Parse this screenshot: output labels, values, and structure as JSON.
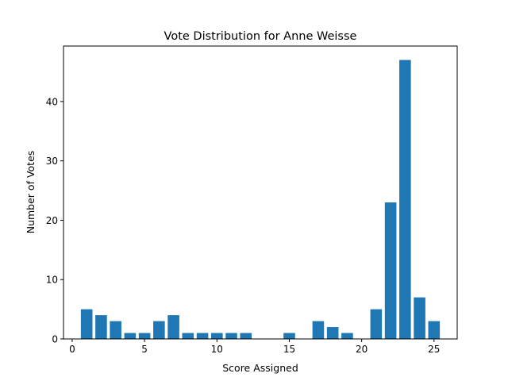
{
  "chart_data": {
    "type": "bar",
    "title": "Vote Distribution for Anne Weisse",
    "xlabel": "Score Assigned",
    "ylabel": "Number of Votes",
    "x": [
      1,
      2,
      3,
      4,
      5,
      6,
      7,
      8,
      9,
      10,
      11,
      12,
      15,
      17,
      18,
      19,
      21,
      22,
      23,
      24,
      25
    ],
    "values": [
      5,
      4,
      3,
      1,
      1,
      3,
      4,
      1,
      1,
      1,
      1,
      1,
      1,
      3,
      2,
      1,
      5,
      23,
      47,
      7,
      3
    ],
    "xlim": [
      -0.6,
      26.6
    ],
    "ylim": [
      0,
      49.35
    ],
    "xticks": [
      0,
      5,
      10,
      15,
      20,
      25
    ],
    "yticks": [
      0,
      10,
      20,
      30,
      40
    ],
    "bar_color": "#1f77b4",
    "grid": false,
    "legend": "none"
  }
}
